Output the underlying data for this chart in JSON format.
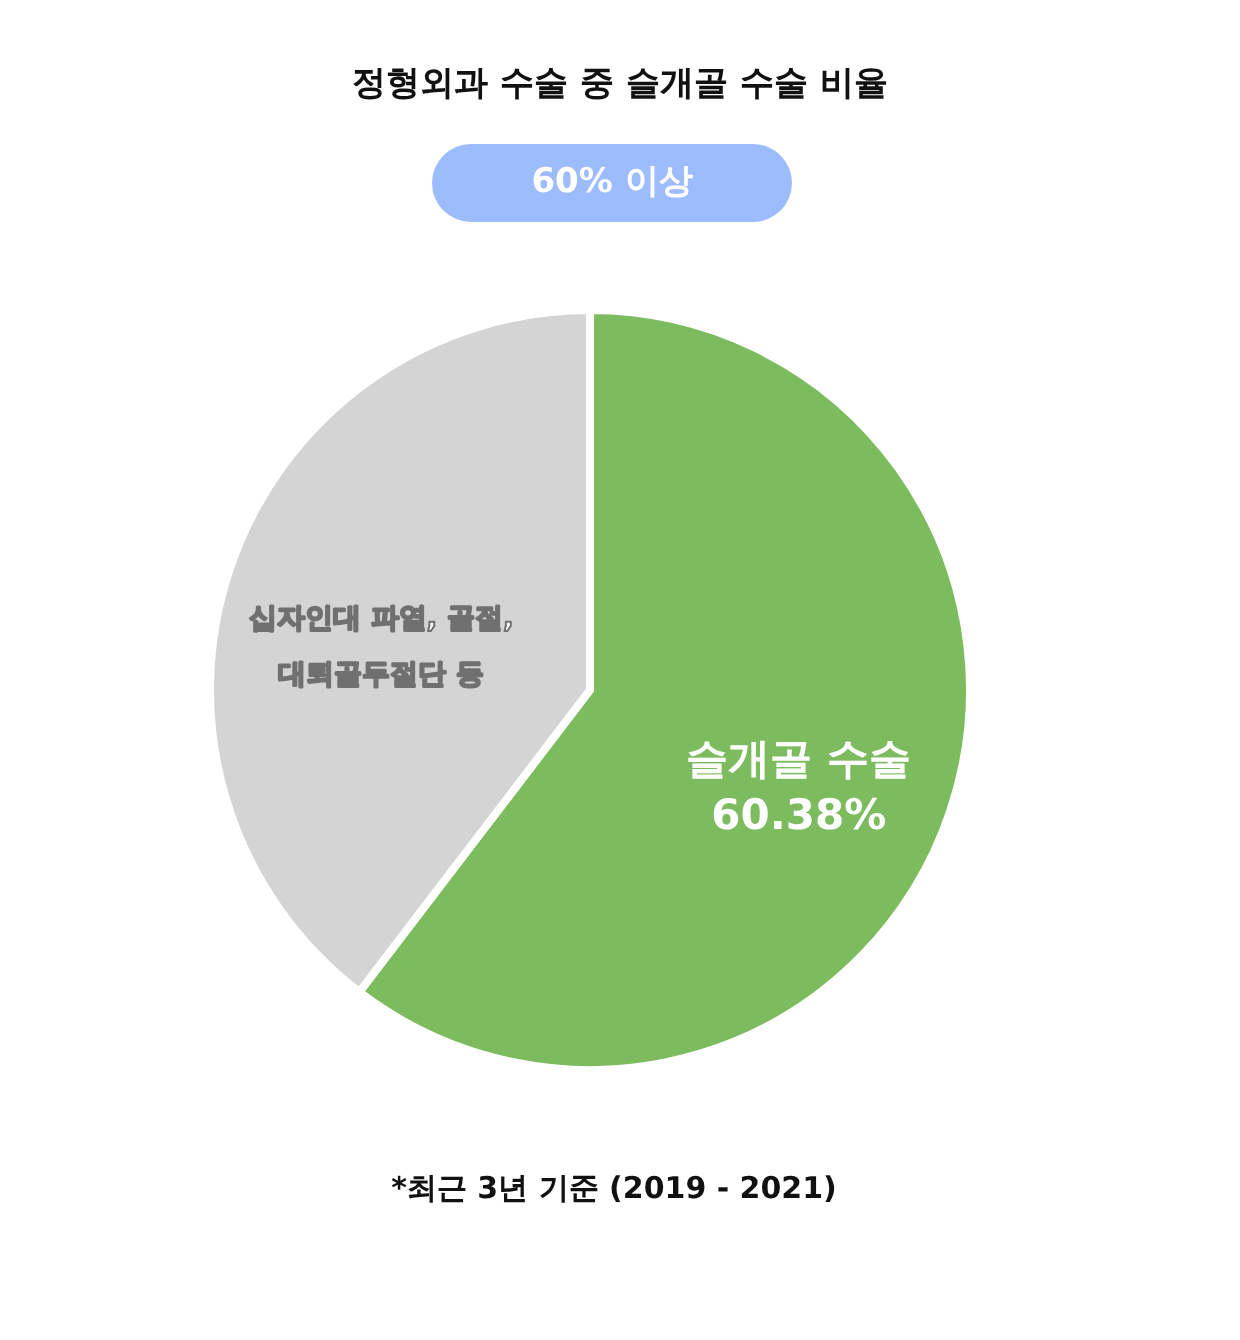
{
  "chart_data": {
    "type": "pie",
    "title": "정형외과 수술 중 슬개골 수술 비율",
    "subtitle": "60% 이상",
    "categories": [
      "슬개골 수술",
      "십자인대 파열, 골절, 대퇴골두절단 등"
    ],
    "values": [
      60.38,
      39.62
    ],
    "colors": [
      "#7cbc5f",
      "#d4d4d4"
    ],
    "value_labels": [
      "60.38%",
      null
    ],
    "annotations": [
      "*최근 3년 기준 (2019 - 2021)"
    ]
  }
}
